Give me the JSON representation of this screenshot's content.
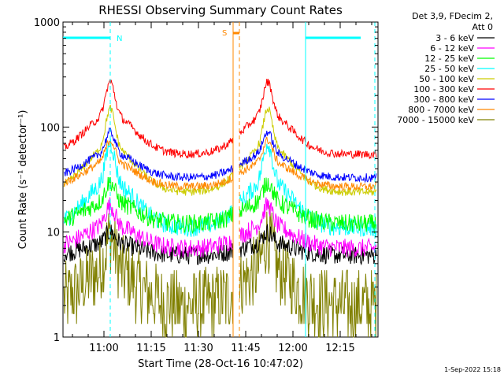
{
  "chart_data": {
    "type": "line",
    "title": "RHESSI Observing Summary Count Rates",
    "xlabel": "Start Time (28-Oct-16 10:47:02)",
    "ylabel": "Count Rate (s⁻¹ detector⁻¹)",
    "y_scale": "log",
    "ylim": [
      1,
      1000
    ],
    "xlim": [
      "10:47",
      "12:27"
    ],
    "x_ticks": [
      "11:00",
      "11:15",
      "11:30",
      "11:45",
      "12:00",
      "12:15"
    ],
    "y_ticks": [
      "1",
      "10",
      "100",
      "1000"
    ],
    "legend_header": [
      "Det 3,9, FDecim 2,",
      "Att 0"
    ],
    "legend_position": "right",
    "series": [
      {
        "name": "3 - 6 keV",
        "color": "#000000",
        "baseline": 6,
        "peak": 10
      },
      {
        "name": "6 - 12 keV",
        "color": "#ff00ff",
        "baseline": 7,
        "peak": 18
      },
      {
        "name": "12 - 25 keV",
        "color": "#00ff00",
        "baseline": 12,
        "peak": 30
      },
      {
        "name": "25 - 50 keV",
        "color": "#00ffff",
        "baseline": 11,
        "peak": 70
      },
      {
        "name": "50 - 100 keV",
        "color": "#cccc00",
        "baseline": 24,
        "peak": 150
      },
      {
        "name": "100 - 300 keV",
        "color": "#ff0000",
        "baseline": 55,
        "peak": 270
      },
      {
        "name": "300 - 800 keV",
        "color": "#0000ff",
        "baseline": 33,
        "peak": 90
      },
      {
        "name": "800 - 7000 keV",
        "color": "#ff8800",
        "baseline": 27,
        "peak": 75
      },
      {
        "name": "7000 - 15000 keV",
        "color": "#808000",
        "baseline": 2,
        "peak": 9
      }
    ],
    "peaks_time": [
      "11:02",
      "11:52"
    ],
    "markers": [
      {
        "label": "N",
        "color": "#00ffff",
        "time": "11:02",
        "style": "dashed"
      },
      {
        "label": "S",
        "color": "#ff8800",
        "time": "11:41",
        "style": "solid"
      }
    ]
  },
  "footer": {
    "date_stamp": "1-Sep-2022 15:18"
  }
}
